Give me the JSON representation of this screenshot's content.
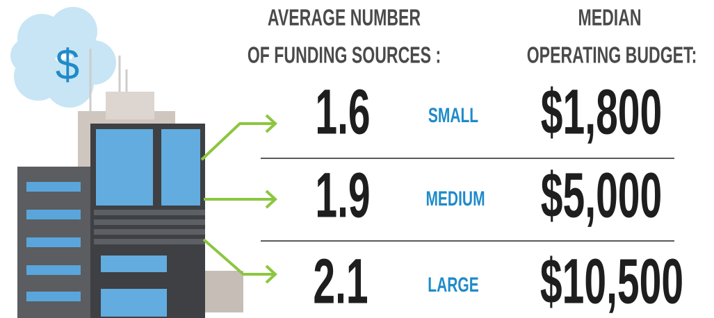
{
  "headers": {
    "funding": [
      "AVERAGE NUMBER",
      "OF FUNDING SOURCES :"
    ],
    "budget": [
      "MEDIAN",
      "OPERATING BUDGET:"
    ]
  },
  "rows": [
    {
      "funding": "1.6",
      "size": "SMALL",
      "budget": "$1,800"
    },
    {
      "funding": "1.9",
      "size": "MEDIUM",
      "budget": "$5,000"
    },
    {
      "funding": "2.1",
      "size": "LARGE",
      "budget": "$10,500"
    }
  ]
}
